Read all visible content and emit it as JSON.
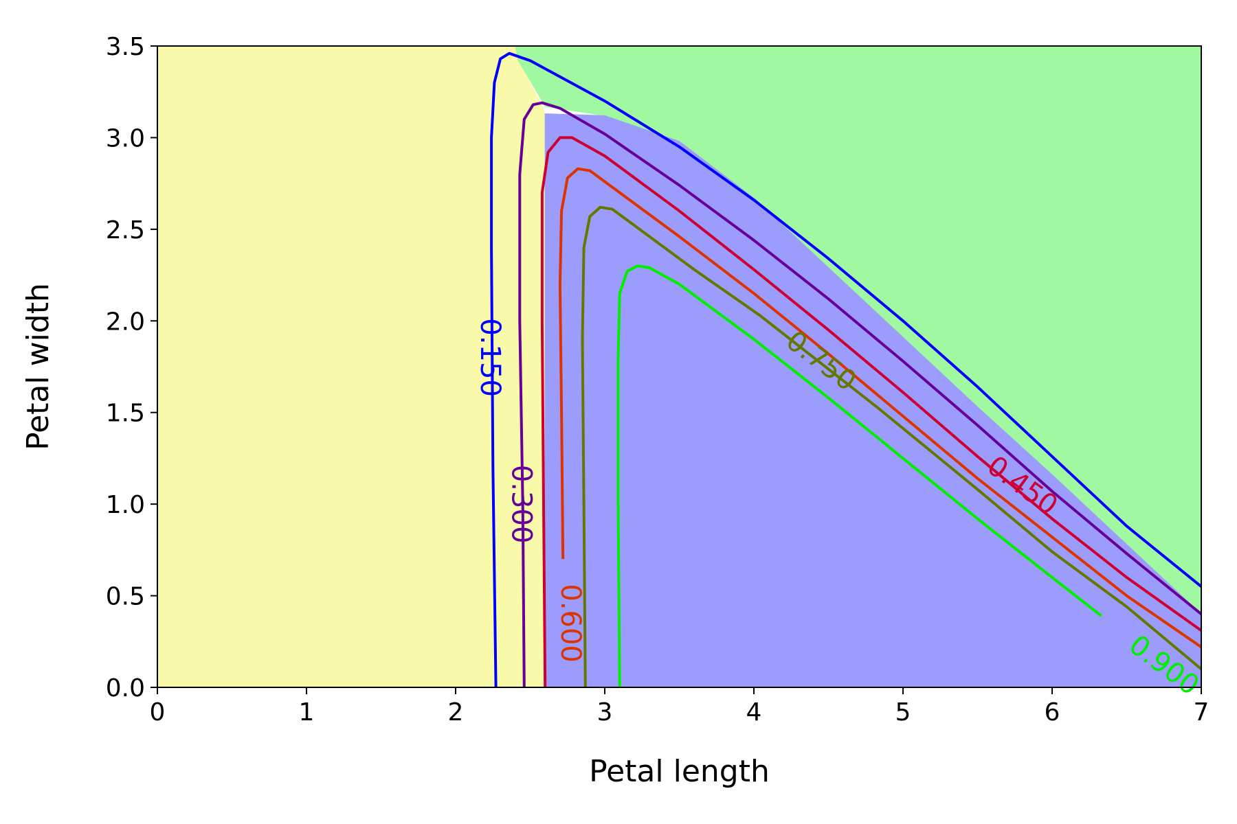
{
  "chart_data": {
    "type": "contour",
    "title": "",
    "xlabel": "Petal length",
    "ylabel": "Petal width",
    "xlim": [
      0,
      7
    ],
    "ylim": [
      0,
      3.5
    ],
    "xticks": [
      "0",
      "1",
      "2",
      "3",
      "4",
      "5",
      "6",
      "7"
    ],
    "yticks": [
      "0.0",
      "0.5",
      "1.0",
      "1.5",
      "2.0",
      "2.5",
      "3.0",
      "3.5"
    ],
    "grid": false,
    "legend": "none",
    "decision_regions": [
      {
        "color": "#f9f9aa",
        "polygon": [
          [
            0,
            0
          ],
          [
            2.6,
            0
          ],
          [
            2.6,
            3.13
          ],
          [
            2.58,
            3.17
          ],
          [
            2.42,
            3.42
          ],
          [
            2.4,
            3.5
          ],
          [
            0,
            3.5
          ]
        ]
      },
      {
        "color": "#a0f9a0",
        "polygon": [
          [
            2.4,
            3.5
          ],
          [
            7,
            3.5
          ],
          [
            7,
            0.4
          ],
          [
            6.5,
            0.78
          ],
          [
            6.0,
            1.16
          ],
          [
            5.5,
            1.53
          ],
          [
            5.0,
            1.91
          ],
          [
            4.5,
            2.29
          ],
          [
            4.0,
            2.67
          ],
          [
            3.5,
            2.98
          ],
          [
            3.0,
            3.12
          ],
          [
            2.6,
            3.17
          ],
          [
            2.58,
            3.2
          ],
          [
            2.42,
            3.42
          ]
        ]
      },
      {
        "color": "#9c9cfc",
        "polygon": [
          [
            2.6,
            0
          ],
          [
            7,
            0
          ],
          [
            7,
            0.4
          ],
          [
            6.5,
            0.78
          ],
          [
            6.0,
            1.16
          ],
          [
            5.5,
            1.53
          ],
          [
            5.0,
            1.91
          ],
          [
            4.5,
            2.29
          ],
          [
            4.0,
            2.67
          ],
          [
            3.5,
            2.98
          ],
          [
            3.0,
            3.12
          ],
          [
            2.6,
            3.13
          ]
        ]
      }
    ],
    "contours": [
      {
        "level": "0.150",
        "color": "#0000ff",
        "points": [
          [
            2.27,
            0.0
          ],
          [
            2.25,
            1.2
          ],
          [
            2.24,
            2.4
          ],
          [
            2.24,
            3.0
          ],
          [
            2.26,
            3.3
          ],
          [
            2.3,
            3.43
          ],
          [
            2.36,
            3.46
          ],
          [
            2.5,
            3.42
          ],
          [
            3.0,
            3.2
          ],
          [
            3.5,
            2.95
          ],
          [
            4.0,
            2.66
          ],
          [
            4.5,
            2.34
          ],
          [
            5.0,
            2.0
          ],
          [
            5.5,
            1.64
          ],
          [
            6.0,
            1.26
          ],
          [
            6.5,
            0.88
          ],
          [
            7.0,
            0.55
          ]
        ],
        "label_position": [
          2.23,
          1.8
        ],
        "label_rotation": 90
      },
      {
        "level": "0.300",
        "color": "#660099",
        "points": [
          [
            2.46,
            0.0
          ],
          [
            2.45,
            1.0
          ],
          [
            2.43,
            2.0
          ],
          [
            2.43,
            2.8
          ],
          [
            2.46,
            3.1
          ],
          [
            2.52,
            3.18
          ],
          [
            2.58,
            3.19
          ],
          [
            2.7,
            3.16
          ],
          [
            3.0,
            3.02
          ],
          [
            3.5,
            2.74
          ],
          [
            4.0,
            2.44
          ],
          [
            4.5,
            2.12
          ],
          [
            5.0,
            1.78
          ],
          [
            5.5,
            1.43
          ],
          [
            6.0,
            1.07
          ],
          [
            6.5,
            0.73
          ],
          [
            7.0,
            0.4
          ]
        ],
        "label_position": [
          2.44,
          1.0
        ],
        "label_rotation": 90
      },
      {
        "level": "0.450",
        "color": "#cc0033",
        "points": [
          [
            2.6,
            0.0
          ],
          [
            2.59,
            1.0
          ],
          [
            2.58,
            2.0
          ],
          [
            2.58,
            2.7
          ],
          [
            2.62,
            2.92
          ],
          [
            2.7,
            3.0
          ],
          [
            2.78,
            3.0
          ],
          [
            3.0,
            2.9
          ],
          [
            3.5,
            2.6
          ],
          [
            4.0,
            2.28
          ],
          [
            4.5,
            1.95
          ],
          [
            5.0,
            1.61
          ],
          [
            5.5,
            1.26
          ],
          [
            6.0,
            0.92
          ],
          [
            6.5,
            0.6
          ],
          [
            7.0,
            0.31
          ]
        ],
        "label_position": [
          5.8,
          1.1
        ],
        "label_rotation": 36
      },
      {
        "level": "0.600",
        "color": "#dd3300",
        "points": [
          [
            2.72,
            0.7
          ],
          [
            2.71,
            1.5
          ],
          [
            2.7,
            2.2
          ],
          [
            2.71,
            2.6
          ],
          [
            2.75,
            2.78
          ],
          [
            2.82,
            2.83
          ],
          [
            2.9,
            2.82
          ],
          [
            3.0,
            2.76
          ],
          [
            3.5,
            2.46
          ],
          [
            4.0,
            2.15
          ],
          [
            4.5,
            1.82
          ],
          [
            5.0,
            1.48
          ],
          [
            5.5,
            1.14
          ],
          [
            6.0,
            0.82
          ],
          [
            6.5,
            0.5
          ],
          [
            7.0,
            0.22
          ]
        ],
        "label_position": [
          2.77,
          0.35
        ],
        "label_rotation": 90
      },
      {
        "level": "0.750",
        "color": "#667700",
        "points": [
          [
            2.87,
            0.0
          ],
          [
            2.86,
            1.0
          ],
          [
            2.85,
            1.9
          ],
          [
            2.86,
            2.4
          ],
          [
            2.9,
            2.57
          ],
          [
            2.97,
            2.62
          ],
          [
            3.05,
            2.61
          ],
          [
            3.2,
            2.52
          ],
          [
            3.6,
            2.28
          ],
          [
            4.04,
            2.03
          ],
          [
            4.84,
            1.52
          ],
          [
            5.5,
            1.08
          ],
          [
            6.0,
            0.74
          ],
          [
            6.5,
            0.44
          ],
          [
            7.0,
            0.1
          ]
        ],
        "label_position": [
          4.45,
          1.78
        ],
        "label_rotation": 37
      },
      {
        "level": "0.900",
        "color": "#00ee00",
        "points": [
          [
            3.1,
            0.0
          ],
          [
            3.09,
            1.0
          ],
          [
            3.09,
            1.8
          ],
          [
            3.1,
            2.15
          ],
          [
            3.15,
            2.27
          ],
          [
            3.22,
            2.3
          ],
          [
            3.3,
            2.29
          ],
          [
            3.5,
            2.2
          ],
          [
            4.0,
            1.9
          ],
          [
            4.5,
            1.58
          ],
          [
            5.0,
            1.25
          ],
          [
            5.5,
            0.92
          ],
          [
            6.0,
            0.6
          ],
          [
            6.33,
            0.39
          ]
        ],
        "label_position": [
          6.75,
          0.12
        ],
        "label_rotation": 37
      }
    ]
  }
}
